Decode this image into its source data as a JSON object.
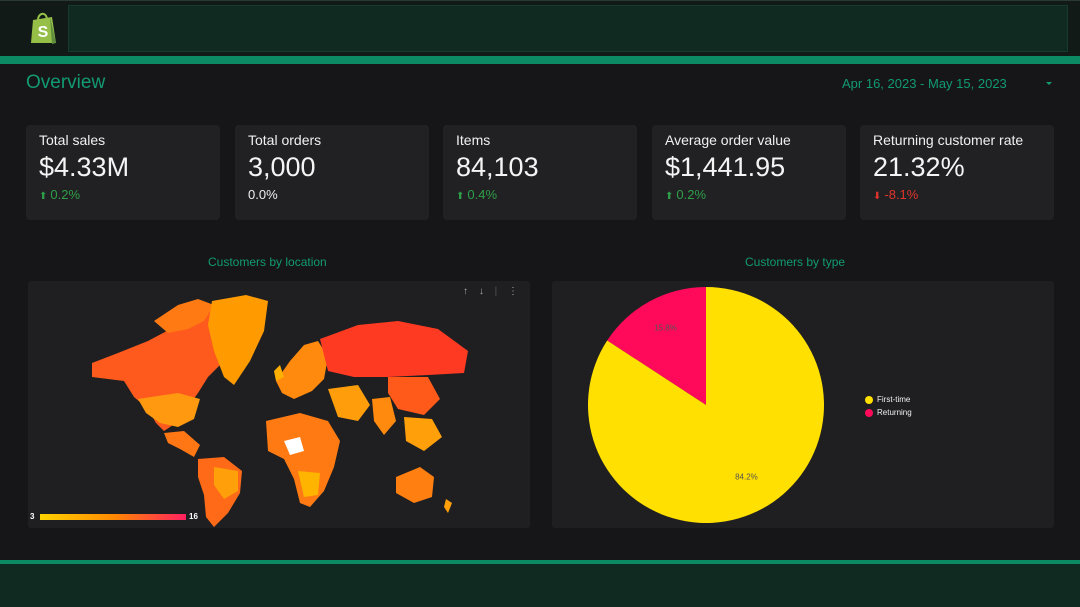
{
  "header": {
    "logo_icon": "shopify-bag-icon",
    "title": "Overview",
    "date_range": "Apr 16, 2023 - May 15, 2023"
  },
  "kpis": [
    {
      "label": "Total sales",
      "value": "$4.33M",
      "delta": "0.2%",
      "trend": "up"
    },
    {
      "label": "Total orders",
      "value": "3,000",
      "delta": "0.0%",
      "trend": "flat"
    },
    {
      "label": "Items",
      "value": "84,103",
      "delta": "0.4%",
      "trend": "up"
    },
    {
      "label": "Average order value",
      "value": "$1,441.95",
      "delta": "0.2%",
      "trend": "up"
    },
    {
      "label": "Returning customer rate",
      "value": "21.32%",
      "delta": "-8.1%",
      "trend": "down"
    }
  ],
  "location_chart": {
    "title": "Customers by location",
    "legend_min": "3",
    "legend_max": "16",
    "toolbar_icons": [
      "sort-ascending-icon",
      "sort-descending-icon",
      "more-vert-icon"
    ]
  },
  "type_chart": {
    "title": "Customers by type"
  },
  "colors": {
    "accent": "#129a72",
    "brand_bar": "#0b8a63",
    "positive": "#2e9f48",
    "negative": "#e0332a",
    "first_time": "#ffe000",
    "returning": "#ff0a5a"
  },
  "chart_data": [
    {
      "type": "pie",
      "title": "Customers by type",
      "categories": [
        "First-time",
        "Returning"
      ],
      "values": [
        84.2,
        15.8
      ],
      "labels": [
        "84.2%",
        "15.8%"
      ],
      "legend": "right"
    }
  ]
}
